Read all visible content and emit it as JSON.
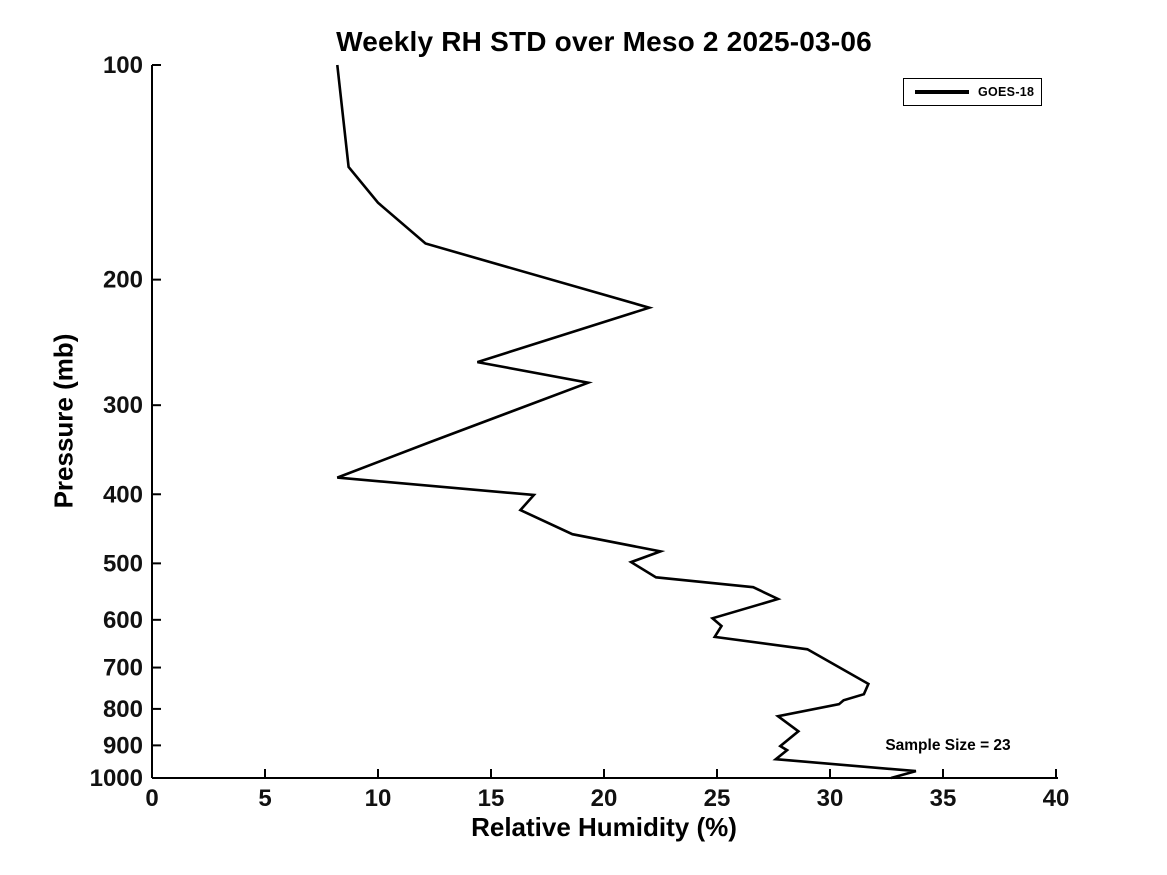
{
  "chart_data": {
    "type": "line",
    "title": "Weekly RH STD over Meso 2 2025-03-06",
    "xlabel": "Relative Humidity (%)",
    "ylabel": "Pressure (mb)",
    "xlim": [
      0,
      40
    ],
    "ylim": [
      100,
      1000
    ],
    "x_ticks": [
      0,
      5,
      10,
      15,
      20,
      25,
      30,
      35,
      40
    ],
    "y_ticks": [
      100,
      200,
      300,
      400,
      500,
      600,
      700,
      800,
      900,
      1000
    ],
    "y_scale": "log",
    "y_direction": "pressure-increases-downward",
    "grid": false,
    "legend_position": "top-right",
    "line_color": "#000000",
    "background_color": "#ffffff",
    "sample_size": 23,
    "annotation": {
      "text": "Sample Size = 23",
      "x_percent": 35.2,
      "pressure_mb": 900
    },
    "series": [
      {
        "name": "GOES-18",
        "color": "#000000",
        "pressure_mb": [
          100,
          139,
          156,
          178,
          219,
          261,
          279,
          338,
          379,
          401,
          421,
          455,
          481,
          498,
          523,
          540,
          561,
          597,
          612,
          634,
          660,
          738,
          763,
          778,
          788,
          819,
          860,
          902,
          914,
          941,
          978,
          1000
        ],
        "values": [
          8.2,
          8.7,
          10.0,
          12.1,
          22.0,
          14.4,
          19.3,
          12.3,
          8.2,
          16.9,
          16.3,
          18.6,
          22.5,
          21.2,
          22.3,
          26.6,
          27.7,
          24.8,
          25.2,
          24.9,
          29.0,
          31.7,
          31.5,
          30.6,
          30.4,
          27.7,
          28.6,
          27.8,
          28.1,
          27.6,
          33.8,
          32.7
        ]
      }
    ]
  }
}
